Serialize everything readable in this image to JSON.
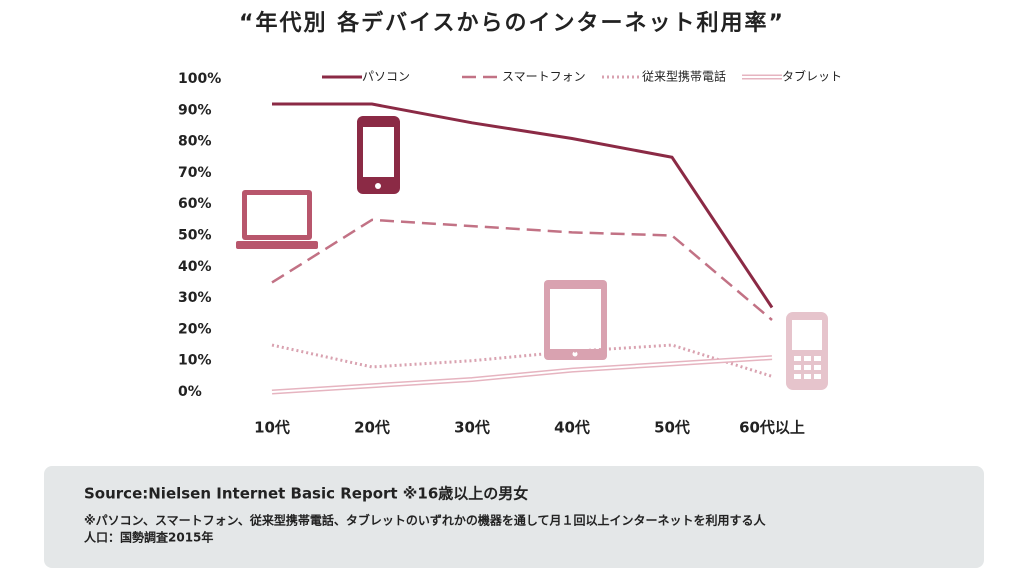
{
  "chart_data": {
    "type": "line",
    "title": "“年代別 各デバイスからのインターネット利用率”",
    "categories": [
      "10代",
      "20代",
      "30代",
      "40代",
      "50代",
      "60代以上"
    ],
    "series": [
      {
        "name": "パソコン",
        "color": "#8b2a45",
        "style": "solid",
        "values": [
          92,
          92,
          86,
          81,
          75,
          27
        ]
      },
      {
        "name": "スマートフォン",
        "color": "#c27285",
        "style": "dashed",
        "values": [
          35,
          55,
          53,
          51,
          50,
          23
        ]
      },
      {
        "name": "従来型携帯電話",
        "color": "#d9a2b0",
        "style": "dotted",
        "values": [
          15,
          8,
          10,
          13,
          15,
          5
        ]
      },
      {
        "name": "タブレット",
        "color": "#e6b4c0",
        "style": "double",
        "values": [
          0,
          2,
          4,
          7,
          9,
          11
        ]
      }
    ],
    "ylim": [
      0,
      100
    ],
    "yticks": [
      {
        "value": 0,
        "label": "0%"
      },
      {
        "value": 10,
        "label": "10%"
      },
      {
        "value": 20,
        "label": "20%"
      },
      {
        "value": 30,
        "label": "30%"
      },
      {
        "value": 40,
        "label": "40%"
      },
      {
        "value": 50,
        "label": "50%"
      },
      {
        "value": 60,
        "label": "60%"
      },
      {
        "value": 70,
        "label": "70%"
      },
      {
        "value": 80,
        "label": "80%"
      },
      {
        "value": 90,
        "label": "90%"
      },
      {
        "value": 100,
        "label": "100%"
      }
    ],
    "grid": false,
    "legend": "top",
    "source": "Source:Nielsen Internet Basic Report ※16歳以上の男女",
    "notes": [
      "※パソコン、スマートフォン、従来型携帯電話、タブレットのいずれかの機器を通して月１回以上インターネットを利用する人",
      "人口：国勢調査2015年"
    ]
  }
}
